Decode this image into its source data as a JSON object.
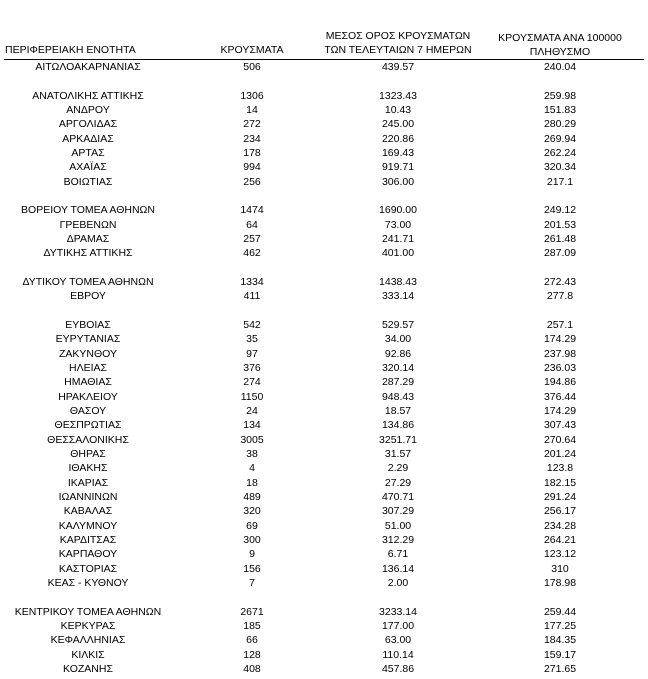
{
  "table": {
    "header": [
      [
        "ΠΕΡΙΦΕΡΕΙΑΚΗ ΕΝΟΤΗΤΑ"
      ],
      [
        "ΚΡΟΥΣΜΑΤΑ"
      ],
      [
        "ΜΕΣΟΣ ΟΡΟΣ ΚΡΟΥΣΜΑΤΩΝ",
        "ΤΩΝ ΤΕΛΕΥΤΑΙΩΝ 7 ΗΜΕΡΩΝ"
      ],
      [
        "ΚΡΟΥΣΜΑΤΑ ΑΝΑ 100000",
        "ΠΛΗΘΥΣΜΟ"
      ]
    ],
    "groups": [
      [
        [
          "ΑΙΤΩΛΟΑΚΑΡΝΑΝΙΑΣ",
          "506",
          "439.57",
          "240.04"
        ]
      ],
      [
        [
          "ΑΝΑΤΟΛΙΚΗΣ ΑΤΤΙΚΗΣ",
          "1306",
          "1323.43",
          "259.98"
        ],
        [
          "ΑΝΔΡΟΥ",
          "14",
          "10.43",
          "151.83"
        ],
        [
          "ΑΡΓΟΛΙΔΑΣ",
          "272",
          "245.00",
          "280.29"
        ],
        [
          "ΑΡΚΑΔΙΑΣ",
          "234",
          "220.86",
          "269.94"
        ],
        [
          "ΑΡΤΑΣ",
          "178",
          "169.43",
          "262.24"
        ],
        [
          "ΑΧΑΪΑΣ",
          "994",
          "919.71",
          "320.34"
        ],
        [
          "ΒΟΙΩΤΙΑΣ",
          "256",
          "306.00",
          "217.1"
        ]
      ],
      [
        [
          "ΒΟΡΕΙΟΥ ΤΟΜΕΑ ΑΘΗΝΩΝ",
          "1474",
          "1690.00",
          "249.12"
        ],
        [
          "ΓΡΕΒΕΝΩΝ",
          "64",
          "73.00",
          "201.53"
        ],
        [
          "ΔΡΑΜΑΣ",
          "257",
          "241.71",
          "261.48"
        ],
        [
          "ΔΥΤΙΚΗΣ ΑΤΤΙΚΗΣ",
          "462",
          "401.00",
          "287.09"
        ]
      ],
      [
        [
          "ΔΥΤΙΚΟΥ ΤΟΜΕΑ ΑΘΗΝΩΝ",
          "1334",
          "1438.43",
          "272.43"
        ],
        [
          "ΕΒΡΟΥ",
          "411",
          "333.14",
          "277.8"
        ]
      ],
      [
        [
          "ΕΥΒΟΙΑΣ",
          "542",
          "529.57",
          "257.1"
        ],
        [
          "ΕΥΡΥΤΑΝΙΑΣ",
          "35",
          "34.00",
          "174.29"
        ],
        [
          "ΖΑΚΥΝΘΟΥ",
          "97",
          "92.86",
          "237.98"
        ],
        [
          "ΗΛΕΙΑΣ",
          "376",
          "320.14",
          "236.03"
        ],
        [
          "ΗΜΑΘΙΑΣ",
          "274",
          "287.29",
          "194.86"
        ],
        [
          "ΗΡΑΚΛΕΙΟΥ",
          "1150",
          "948.43",
          "376.44"
        ],
        [
          "ΘΑΣΟΥ",
          "24",
          "18.57",
          "174.29"
        ],
        [
          "ΘΕΣΠΡΩΤΙΑΣ",
          "134",
          "134.86",
          "307.43"
        ],
        [
          "ΘΕΣΣΑΛΟΝΙΚΗΣ",
          "3005",
          "3251.71",
          "270.64"
        ],
        [
          "ΘΗΡΑΣ",
          "38",
          "31.57",
          "201.24"
        ],
        [
          "ΙΘΑΚΗΣ",
          "4",
          "2.29",
          "123.8"
        ],
        [
          "ΙΚΑΡΙΑΣ",
          "18",
          "27.29",
          "182.15"
        ],
        [
          "ΙΩΑΝΝΙΝΩΝ",
          "489",
          "470.71",
          "291.24"
        ],
        [
          "ΚΑΒΑΛΑΣ",
          "320",
          "307.29",
          "256.17"
        ],
        [
          "ΚΑΛΥΜΝΟΥ",
          "69",
          "51.00",
          "234.28"
        ],
        [
          "ΚΑΡΔΙΤΣΑΣ",
          "300",
          "312.29",
          "264.21"
        ],
        [
          "ΚΑΡΠΑΘΟΥ",
          "9",
          "6.71",
          "123.12"
        ],
        [
          "ΚΑΣΤΟΡΙΑΣ",
          "156",
          "136.14",
          "310"
        ],
        [
          "ΚΕΑΣ - ΚΥΘΝΟΥ",
          "7",
          "2.00",
          "178.98"
        ]
      ],
      [
        [
          "ΚΕΝΤΡΙΚΟΥ ΤΟΜΕΑ ΑΘΗΝΩΝ",
          "2671",
          "3233.14",
          "259.44"
        ],
        [
          "ΚΕΡΚΥΡΑΣ",
          "185",
          "177.00",
          "177.25"
        ],
        [
          "ΚΕΦΑΛΛΗΝΙΑΣ",
          "66",
          "63.00",
          "184.35"
        ],
        [
          "ΚΙΛΚΙΣ",
          "128",
          "110.14",
          "159.17"
        ],
        [
          "ΚΟΖΑΝΗΣ",
          "408",
          "457.86",
          "271.65"
        ]
      ]
    ]
  }
}
